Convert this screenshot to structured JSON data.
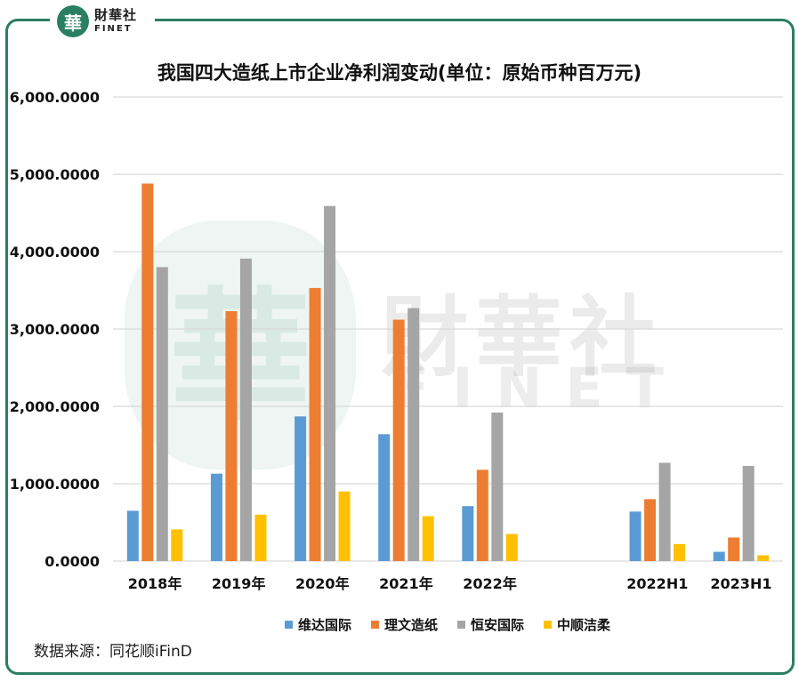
{
  "brand": {
    "mark": "華",
    "name_cn": "財華社",
    "name_en": "FINET"
  },
  "watermark": {
    "cn": "財華社",
    "en": "FINET",
    "seal": "華"
  },
  "source": "数据来源：同花顺iFinD",
  "colors": {
    "frame": "#2a7f62",
    "grid": "#d9d9d9"
  },
  "chart_data": {
    "type": "bar",
    "title": "我国四大造纸上市企业净利润变动(单位：原始币种百万元)",
    "categories": [
      "2018年",
      "2019年",
      "2020年",
      "2021年",
      "2022年",
      "",
      "2022H1",
      "2023H1"
    ],
    "series": [
      {
        "name": "维达国际",
        "color": "#5b9bd5",
        "values": [
          650,
          1130,
          1870,
          1640,
          710,
          null,
          640,
          120
        ]
      },
      {
        "name": "理文造纸",
        "color": "#ed7d31",
        "values": [
          4880,
          3230,
          3530,
          3120,
          1180,
          null,
          800,
          305
        ]
      },
      {
        "name": "恒安国际",
        "color": "#a5a5a5",
        "values": [
          3800,
          3910,
          4590,
          3270,
          1920,
          null,
          1270,
          1230
        ]
      },
      {
        "name": "中顺洁柔",
        "color": "#ffc000",
        "values": [
          410,
          600,
          900,
          580,
          350,
          null,
          220,
          75
        ]
      }
    ],
    "ylim": [
      0,
      6000
    ],
    "yticks": [
      0,
      1000,
      2000,
      3000,
      4000,
      5000,
      6000
    ],
    "ytick_labels": [
      "0.0000",
      "1,000.0000",
      "2,000.0000",
      "3,000.0000",
      "4,000.0000",
      "5,000.0000",
      "6,000.0000"
    ],
    "grid": true,
    "legend": "bottom"
  }
}
